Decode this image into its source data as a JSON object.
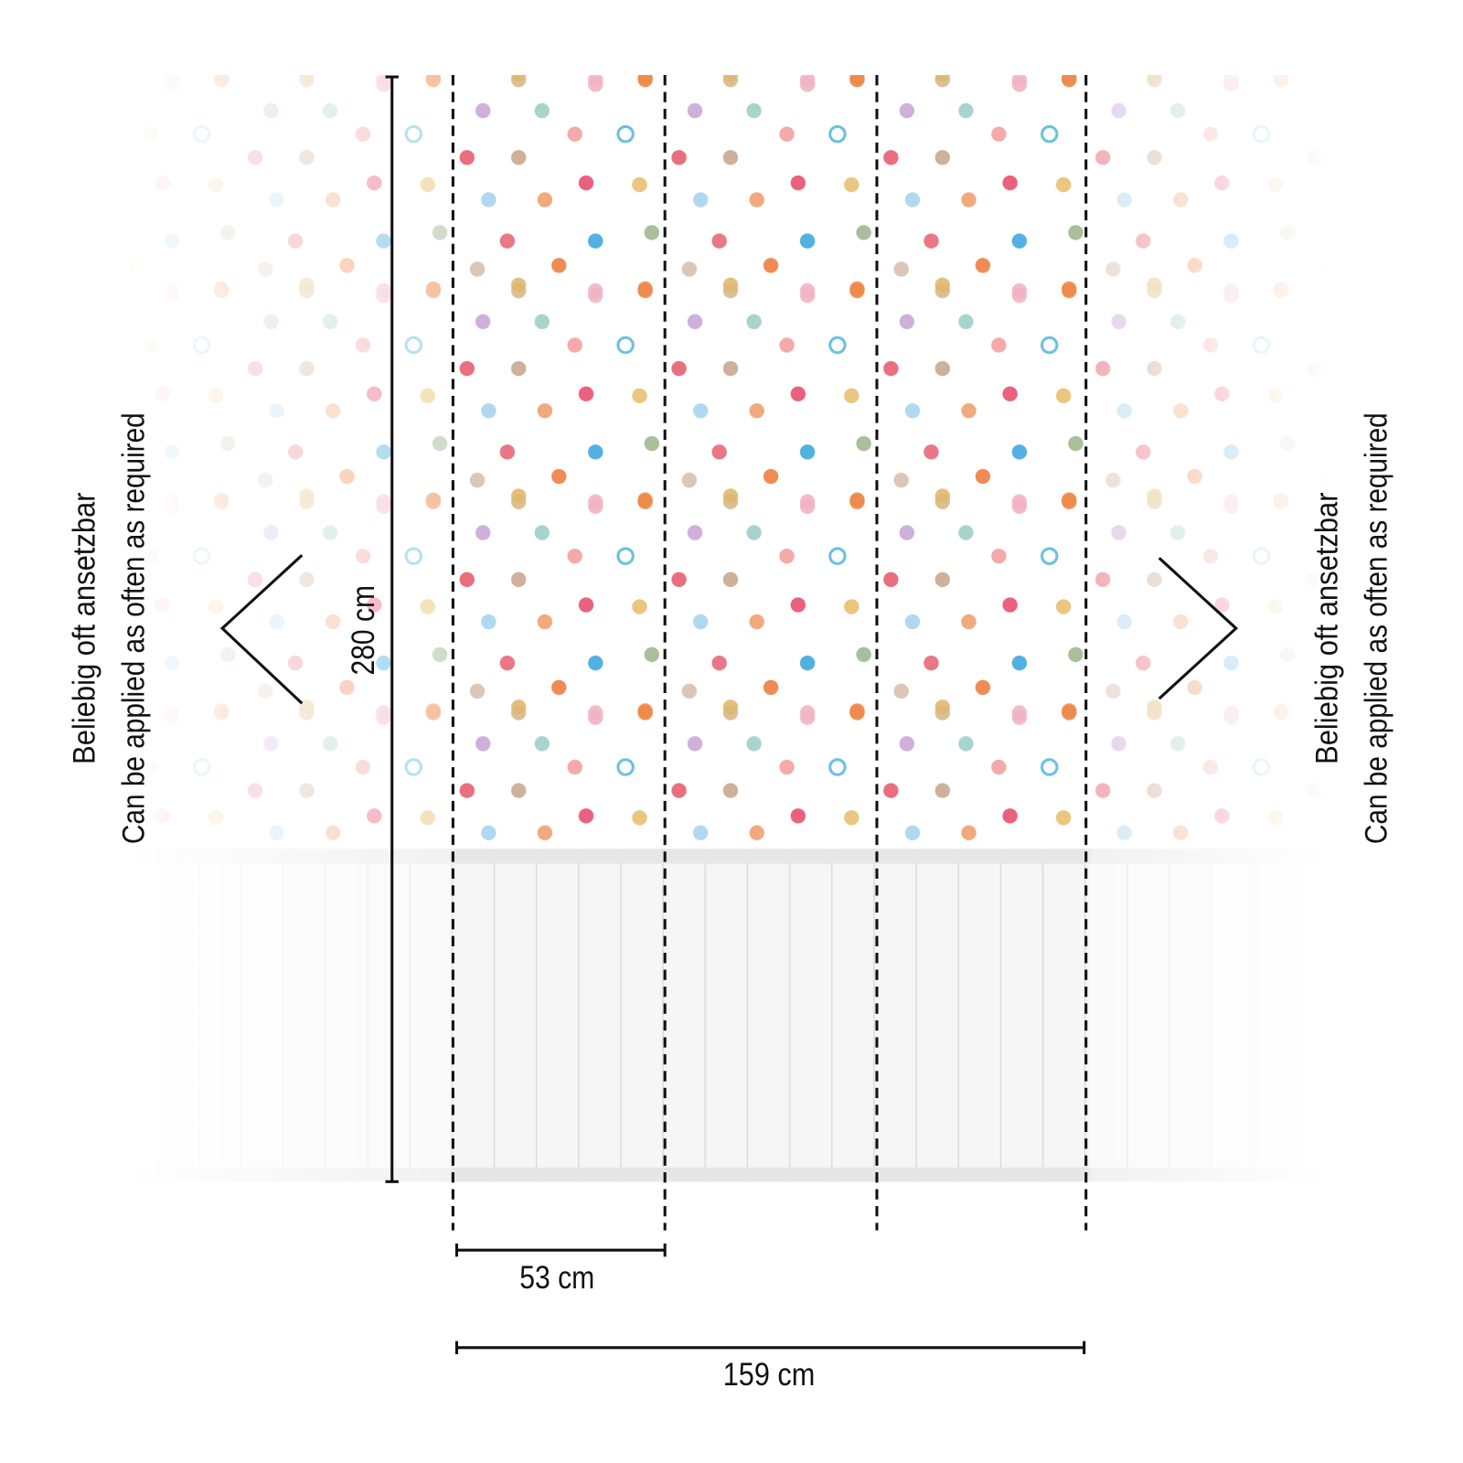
{
  "height_label": "280 cm",
  "panel_width_label": "53 cm",
  "total_width_label": "159 cm",
  "left_note": {
    "line1": "Beliebig oft ansetzbar",
    "line2": "Can be applied as often as required"
  },
  "right_note": {
    "line1": "Beliebig oft ansetzbar",
    "line2": "Can be applied as often as required"
  }
}
